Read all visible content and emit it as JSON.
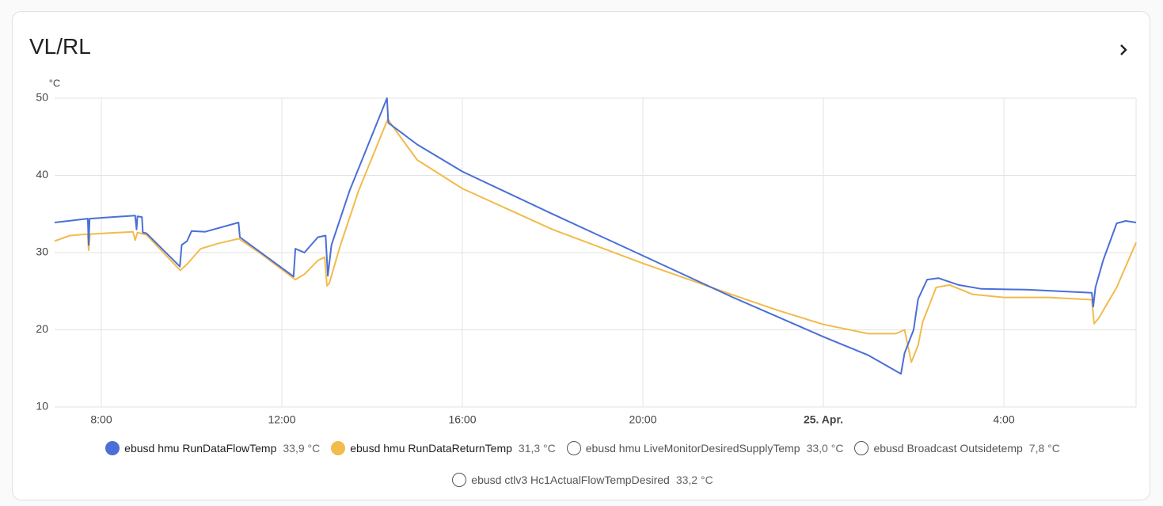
{
  "chart_data": {
    "type": "line",
    "title": "VL/RL",
    "y_label": "°C",
    "xlim": [
      6.965,
      30.93
    ],
    "ylim": [
      10,
      50
    ],
    "xticks": [
      {
        "value": 8,
        "label": "8:00"
      },
      {
        "value": 12,
        "label": "12:00"
      },
      {
        "value": 16,
        "label": "16:00"
      },
      {
        "value": 20,
        "label": "20:00"
      },
      {
        "value": 24,
        "label": "25. Apr.",
        "bold": true
      },
      {
        "value": 28,
        "label": "4:00"
      }
    ],
    "yticks": [
      10,
      20,
      30,
      40,
      50
    ],
    "grid": true,
    "series": [
      {
        "name": "ebusd hmu RunDataFlowTemp",
        "state": "33,9 °C",
        "color": "#4a6fd6",
        "x": [
          6.965,
          7.7,
          7.72,
          7.74,
          8.75,
          8.78,
          8.8,
          8.9,
          8.92,
          9.0,
          9.74,
          9.78,
          9.9,
          10.0,
          10.3,
          11.04,
          11.07,
          12.26,
          12.3,
          12.5,
          12.8,
          12.97,
          13.02,
          13.1,
          13.5,
          14.33,
          14.36,
          15.0,
          16.0,
          18.0,
          20.0,
          22.0,
          24.0,
          25.0,
          25.72,
          25.8,
          26.0,
          26.1,
          26.3,
          26.55,
          27.0,
          27.5,
          28.5,
          29.95,
          29.98,
          30.03,
          30.2,
          30.5,
          30.7,
          30.93
        ],
        "values": [
          33.9,
          34.4,
          31,
          34.4,
          34.8,
          33,
          34.7,
          34.6,
          32.6,
          32.5,
          28.2,
          31,
          31.5,
          32.8,
          32.7,
          33.9,
          32,
          26.9,
          30.5,
          30,
          32,
          32.2,
          27,
          31,
          38,
          50,
          46.8,
          44,
          40.5,
          35,
          29.6,
          24.2,
          19.1,
          16.7,
          14.3,
          17,
          20,
          24,
          26.5,
          26.7,
          25.8,
          25.3,
          25.2,
          24.8,
          23,
          25.5,
          29,
          33.8,
          34.1,
          33.9
        ]
      },
      {
        "name": "ebusd hmu RunDataReturnTemp",
        "state": "31,3 °C",
        "color": "#f2bb4b",
        "x": [
          6.965,
          7.3,
          7.7,
          7.72,
          7.75,
          8.7,
          8.75,
          8.8,
          9.0,
          9.75,
          9.9,
          10.2,
          10.6,
          11.05,
          11.5,
          12.3,
          12.5,
          12.8,
          12.95,
          13.0,
          13.05,
          13.3,
          13.7,
          14.35,
          14.5,
          15.0,
          16.0,
          18.0,
          20.0,
          22.0,
          23.0,
          24.0,
          25.0,
          25.6,
          25.8,
          25.95,
          26.1,
          26.2,
          26.5,
          26.8,
          27.3,
          28.0,
          29.0,
          29.95,
          30.0,
          30.1,
          30.5,
          30.93
        ],
        "values": [
          31.5,
          32.2,
          32.4,
          30.3,
          32.4,
          32.7,
          31.6,
          32.6,
          32.3,
          27.7,
          28.5,
          30.5,
          31.2,
          31.8,
          30,
          26.5,
          27.2,
          29,
          29.4,
          25.7,
          26,
          31,
          38,
          47.3,
          46,
          42,
          38.3,
          33,
          28.6,
          24.5,
          22.5,
          20.7,
          19.5,
          19.5,
          20,
          15.8,
          18,
          21,
          25.5,
          25.8,
          24.6,
          24.2,
          24.2,
          23.9,
          20.8,
          21.5,
          25.5,
          31.3
        ]
      },
      {
        "name": "ebusd hmu LiveMonitorDesiredSupplyTemp",
        "state": "33,0 °C",
        "hidden": true
      },
      {
        "name": "ebusd Broadcast Outsidetemp",
        "state": "7,8 °C",
        "hidden": true
      },
      {
        "name": "ebusd ctlv3 Hc1ActualFlowTempDesired",
        "state": "33,2 °C",
        "hidden": true
      }
    ]
  }
}
